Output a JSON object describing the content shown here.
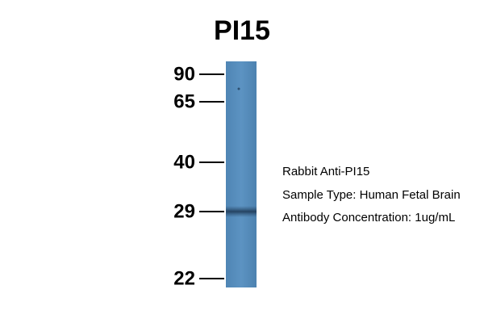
{
  "title": "PI15",
  "markers": [
    "90",
    "65",
    "40",
    "29",
    "22"
  ],
  "annotations": [
    "Rabbit Anti-PI15",
    "Sample Type: Human Fetal Brain",
    "Antibody Concentration: 1ug/mL"
  ]
}
